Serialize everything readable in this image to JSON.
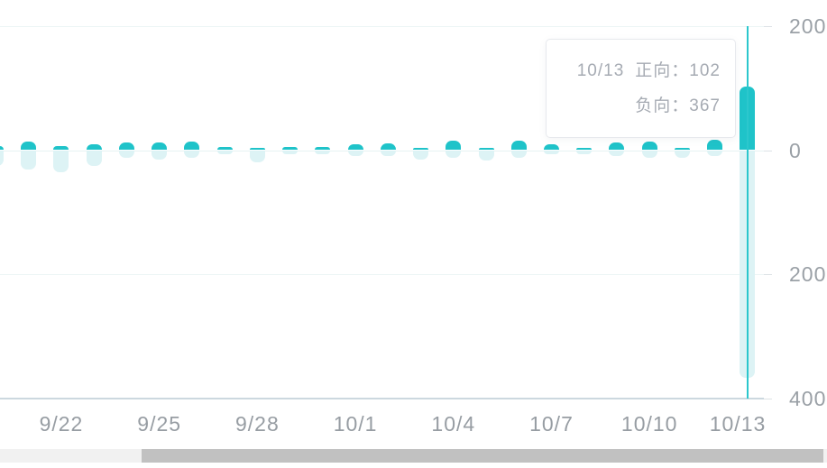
{
  "chart_data": {
    "type": "bar",
    "title": "",
    "xlabel": "",
    "ylabel": "",
    "categories": [
      "9/20",
      "9/21",
      "9/22",
      "9/23",
      "9/24",
      "9/25",
      "9/26",
      "9/27",
      "9/28",
      "9/29",
      "9/30",
      "10/1",
      "10/2",
      "10/3",
      "10/4",
      "10/5",
      "10/6",
      "10/7",
      "10/8",
      "10/9",
      "10/10",
      "10/11",
      "10/12",
      "10/13"
    ],
    "series": [
      {
        "name": "正向",
        "direction": "up",
        "values": [
          6,
          14,
          6,
          10,
          12,
          12,
          14,
          5,
          3,
          5,
          5,
          10,
          11,
          4,
          15,
          4,
          15,
          9,
          4,
          12,
          14,
          4,
          16,
          102
        ]
      },
      {
        "name": "负向",
        "direction": "down",
        "values": [
          26,
          31,
          35,
          26,
          12,
          15,
          12,
          7,
          20,
          6,
          6,
          9,
          9,
          15,
          12,
          17,
          12,
          6,
          6,
          9,
          12,
          12,
          9,
          367
        ]
      }
    ],
    "x_tick_labels": [
      "9/22",
      "9/25",
      "9/28",
      "10/1",
      "10/4",
      "10/7",
      "10/10",
      "10/13"
    ],
    "y_axis": {
      "side": "right",
      "tick_values": [
        200,
        0,
        -200,
        -400
      ],
      "tick_labels": [
        "200",
        "0",
        "200",
        "400"
      ]
    },
    "ylim": [
      -400,
      200
    ],
    "grid": true,
    "legend_position": "none",
    "highlighted_category": "10/13"
  },
  "tooltip": {
    "date": "10/13",
    "sep": "：",
    "items": [
      {
        "name": "正向",
        "value": "102"
      },
      {
        "name": "负向",
        "value": "367"
      }
    ]
  },
  "colors": {
    "bar_positive": "#1fc3c9",
    "bar_negative": "#ddf3f5",
    "crosshair": "#2cc7cd",
    "gridline": "#ecf5f5",
    "axis_line": "#ccd8df",
    "axis_label": "#9aa0a6",
    "tooltip_text": "#a6abb3",
    "scrollbar_thumb": "#c1c1c1",
    "scrollbar_track": "#f1f1f1"
  }
}
